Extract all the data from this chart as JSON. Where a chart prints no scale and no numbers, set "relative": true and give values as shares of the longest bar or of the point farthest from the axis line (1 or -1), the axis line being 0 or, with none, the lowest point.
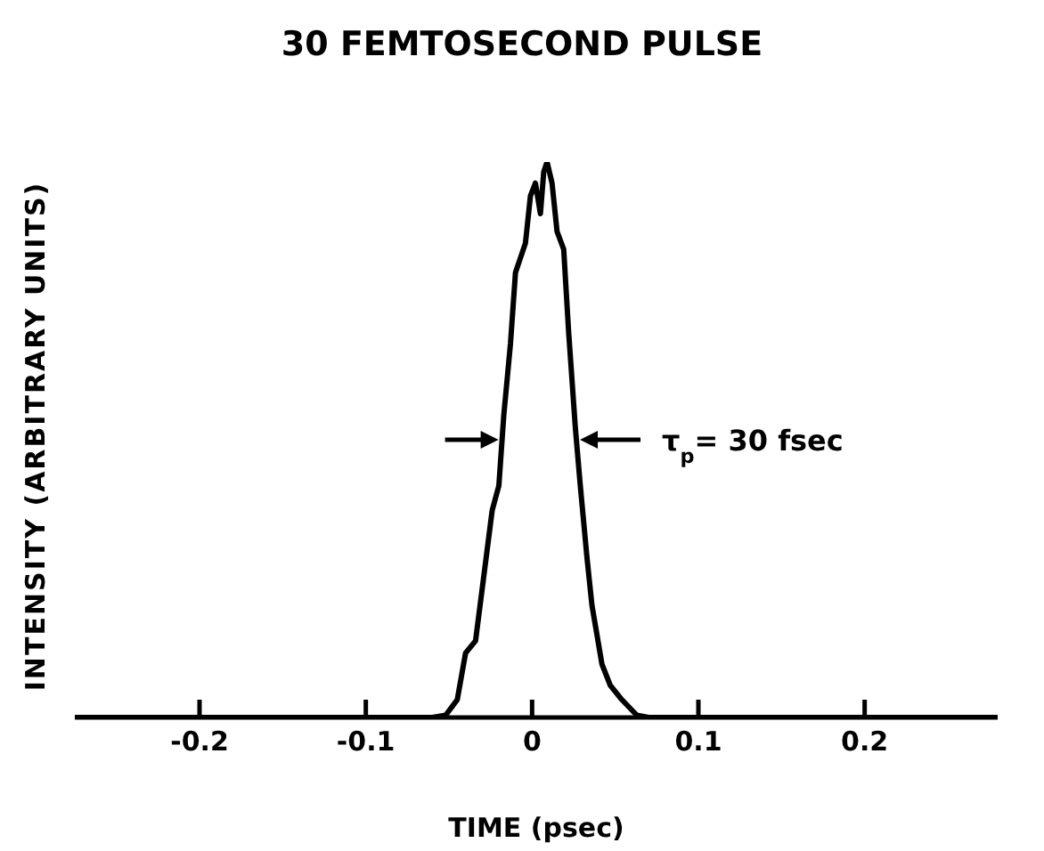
{
  "chart_data": {
    "type": "line",
    "title": "30 FEMTOSECOND PULSE",
    "xlabel": "TIME (psec)",
    "ylabel": "INTENSITY (ARBITRARY UNITS)",
    "relative": true,
    "annotations": [
      "τ$_{p}$= 30 fsec"
    ],
    "xlim": [
      -0.275,
      0.28
    ],
    "xticks": [
      -0.2,
      -0.1,
      0,
      0.1,
      0.2
    ],
    "marker": "none",
    "line_style": "solid",
    "series": [
      {
        "color": "#000000",
        "x": [
          -0.275,
          -0.06,
          -0.052,
          -0.045,
          -0.04,
          -0.034,
          -0.024,
          -0.02,
          -0.017,
          -0.013,
          -0.01,
          -0.004,
          -0.001,
          0.002,
          0.005,
          0.007,
          0.009,
          0.012,
          0.015,
          0.019,
          0.022,
          0.026,
          0.029,
          0.033,
          0.036,
          0.042,
          0.047,
          0.054,
          0.063,
          0.07,
          0.28
        ],
        "values": [
          0,
          0,
          0.004,
          0.032,
          0.116,
          0.138,
          0.373,
          0.417,
          0.545,
          0.673,
          0.801,
          0.854,
          0.939,
          0.962,
          0.907,
          0.982,
          1.0,
          0.962,
          0.875,
          0.843,
          0.693,
          0.522,
          0.417,
          0.288,
          0.202,
          0.096,
          0.058,
          0.032,
          0.004,
          0,
          0
        ]
      }
    ]
  }
}
